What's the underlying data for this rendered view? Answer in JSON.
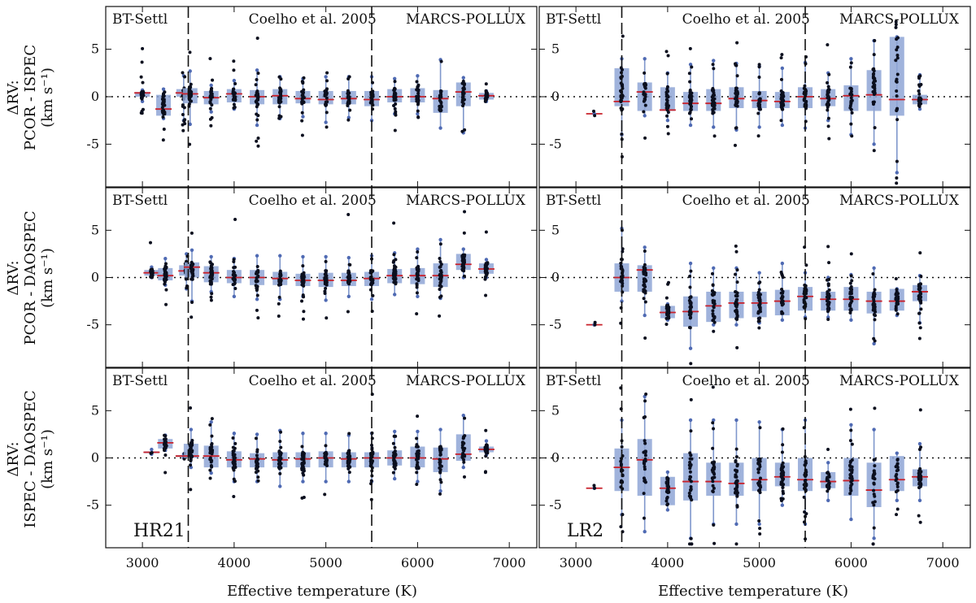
{
  "chart_data": {
    "type": "box-and-scatter",
    "figure_xlabel": "Effective temperature (K)",
    "row_ylabels": [
      [
        "ΔRV:",
        "PCOR - ISPEC",
        "(km s⁻¹)"
      ],
      [
        "ΔRV:",
        "PCOR - DAOSPEC",
        "(km s⁻¹)"
      ],
      [
        "ΔRV:",
        "ISPEC - DAOSPEC",
        "(km s⁻¹)"
      ]
    ],
    "columns": [
      "HR21",
      "LR2"
    ],
    "xlim": [
      2600,
      7300
    ],
    "xticks": [
      3000,
      4000,
      5000,
      6000,
      7000
    ],
    "ylim": [
      -9.5,
      9.5
    ],
    "yticks": [
      -5,
      0,
      5
    ],
    "model_boundaries": [
      3500,
      5500
    ],
    "model_labels": [
      "BT-Settl",
      "Coelho et al. 2005",
      "MARCS-POLLUX"
    ],
    "temperatures": [
      3100,
      3250,
      3500,
      3750,
      4000,
      4250,
      4500,
      4750,
      5000,
      5250,
      5500,
      5750,
      6000,
      6250,
      6500,
      6750
    ],
    "panels": [
      {
        "column": "HR21",
        "row": 0,
        "boxes": [
          [
            3000,
            -0.5,
            0,
            0.4,
            0.5,
            0.7
          ],
          [
            3230,
            -2.3,
            -2.0,
            -1.3,
            0.2,
            0.8
          ],
          [
            3450,
            -2.5,
            0.0,
            0.4,
            0.8,
            2.2
          ],
          [
            3520,
            -2.9,
            -0.7,
            0.3,
            0.9,
            2.7
          ],
          [
            3750,
            -1.6,
            -0.8,
            -0.1,
            0.6,
            1.2
          ],
          [
            4000,
            -1.3,
            -0.6,
            0.3,
            0.8,
            1.7
          ],
          [
            4250,
            -3.0,
            -0.8,
            0.0,
            0.7,
            2.8
          ],
          [
            4500,
            -2.3,
            -0.8,
            0.1,
            0.8,
            2.1
          ],
          [
            4750,
            -2.1,
            -0.7,
            -0.2,
            0.6,
            1.9
          ],
          [
            5000,
            -2.7,
            -0.8,
            -0.3,
            0.6,
            2.1
          ],
          [
            5250,
            -2.2,
            -0.8,
            -0.2,
            0.6,
            2.1
          ],
          [
            5500,
            -2.5,
            -1.0,
            -0.3,
            0.6,
            2.1
          ],
          [
            5750,
            -1.8,
            -0.6,
            0.0,
            0.8,
            1.9
          ],
          [
            6000,
            -1.8,
            -0.6,
            0.0,
            0.9,
            2.2
          ],
          [
            6250,
            -3.3,
            -1.7,
            -0.2,
            0.7,
            3.9
          ],
          [
            6500,
            -3.8,
            -1.0,
            0.5,
            1.5,
            2.0
          ],
          [
            6750,
            -0.5,
            -0.3,
            0.1,
            0.4,
            0.6
          ]
        ]
      },
      {
        "column": "LR2",
        "row": 0,
        "boxes": [
          [
            3200,
            -1.8,
            -1.8,
            -1.8,
            -1.8,
            -1.8
          ],
          [
            3500,
            -4.0,
            -1.0,
            -0.5,
            3.0,
            4.0
          ],
          [
            3750,
            -2.0,
            -1.5,
            0.5,
            1.5,
            4.0
          ],
          [
            4000,
            -2.5,
            -1.5,
            -1.4,
            1.0,
            2.5
          ],
          [
            4250,
            -3.0,
            -1.5,
            -0.7,
            0.5,
            3.4
          ],
          [
            4500,
            -3.2,
            -1.5,
            -0.7,
            0.8,
            3.8
          ],
          [
            4750,
            -3.5,
            -1.2,
            -0.2,
            1.0,
            3.5
          ],
          [
            5000,
            -3.2,
            -1.2,
            -0.4,
            0.6,
            3.2
          ],
          [
            5250,
            -3.0,
            -1.2,
            -0.5,
            0.5,
            3.0
          ],
          [
            5500,
            -3.3,
            -1.2,
            0.0,
            1.0,
            3.6
          ],
          [
            5750,
            -2.5,
            -1.0,
            -0.2,
            0.8,
            2.5
          ],
          [
            6000,
            -4.0,
            -1.5,
            0.1,
            1.2,
            4.0
          ],
          [
            6250,
            -5.0,
            -1.5,
            0.2,
            2.8,
            5.9
          ],
          [
            6500,
            -8.0,
            -2.0,
            -0.3,
            6.3,
            6.3
          ],
          [
            6750,
            -1.3,
            -0.8,
            -0.3,
            0.2,
            2.3
          ]
        ]
      },
      {
        "column": "HR21",
        "row": 1,
        "boxes": [
          [
            3100,
            0.0,
            0.2,
            0.5,
            0.8,
            1.1
          ],
          [
            3250,
            -0.8,
            -0.3,
            0.2,
            1.0,
            2.0
          ],
          [
            3480,
            -1.2,
            0.2,
            0.7,
            1.3,
            2.5
          ],
          [
            3540,
            -2.5,
            0.0,
            1.1,
            1.6,
            2.9
          ],
          [
            3750,
            -1.5,
            -0.5,
            0.5,
            1.2,
            2.2
          ],
          [
            4000,
            -2.0,
            -0.6,
            0.0,
            0.8,
            2.0
          ],
          [
            4250,
            -2.3,
            -0.8,
            0.0,
            0.8,
            2.3
          ],
          [
            4500,
            -2.3,
            -0.8,
            -0.1,
            0.6,
            2.3
          ],
          [
            4750,
            -2.0,
            -0.9,
            -0.3,
            0.4,
            2.2
          ],
          [
            5000,
            -2.4,
            -1.0,
            -0.3,
            0.5,
            2.2
          ],
          [
            5250,
            -2.0,
            -0.9,
            -0.3,
            0.5,
            2.1
          ],
          [
            5500,
            -2.3,
            -0.9,
            -0.1,
            0.6,
            2.3
          ],
          [
            5750,
            -1.8,
            -0.6,
            0.2,
            0.9,
            2.6
          ],
          [
            6000,
            -2.0,
            -0.7,
            0.2,
            1.0,
            3.0
          ],
          [
            6250,
            -2.2,
            -1.0,
            0.2,
            1.5,
            4.0
          ],
          [
            6500,
            0.0,
            0.8,
            1.4,
            2.5,
            3.0
          ],
          [
            6750,
            0.0,
            0.4,
            0.9,
            1.5,
            1.9
          ]
        ]
      },
      {
        "column": "LR2",
        "row": 1,
        "boxes": [
          [
            3200,
            -5.0,
            -5.0,
            -5.0,
            -5.0,
            -5.0
          ],
          [
            3500,
            -2.5,
            -1.5,
            0.0,
            1.5,
            5.2
          ],
          [
            3750,
            -4.0,
            -1.5,
            0.8,
            1.3,
            3.2
          ],
          [
            4000,
            -4.5,
            -4.3,
            -3.7,
            -3.0,
            -2.8
          ],
          [
            4250,
            -7.5,
            -5.2,
            -3.6,
            -2.0,
            1.5
          ],
          [
            4500,
            -5.0,
            -4.7,
            -3.0,
            -1.5,
            1.0
          ],
          [
            4750,
            -5.0,
            -4.3,
            -2.7,
            -1.5,
            1.0
          ],
          [
            5000,
            -4.8,
            -4.2,
            -2.7,
            -1.5,
            0.5
          ],
          [
            5250,
            -4.5,
            -4.0,
            -2.5,
            -1.3,
            1.5
          ],
          [
            5500,
            -4.2,
            -3.5,
            -2.0,
            -1.0,
            0.5
          ],
          [
            5750,
            -4.2,
            -3.5,
            -2.3,
            -1.5,
            0.0
          ],
          [
            6000,
            -4.5,
            -3.5,
            -2.3,
            -1.0,
            0.3
          ],
          [
            6250,
            -7.0,
            -3.8,
            -2.5,
            -1.5,
            1.0
          ],
          [
            6500,
            -4.0,
            -3.5,
            -2.5,
            -1.2,
            -1.2
          ],
          [
            6750,
            -4.8,
            -2.5,
            -1.5,
            -0.8,
            0.2
          ]
        ]
      },
      {
        "column": "HR21",
        "row": 2,
        "boxes": [
          [
            3100,
            0.4,
            0.5,
            0.6,
            0.7,
            0.9
          ],
          [
            3250,
            0.8,
            1.0,
            1.6,
            2.0,
            2.4
          ],
          [
            3450,
            0.0,
            0.1,
            0.2,
            0.3,
            0.4
          ],
          [
            3530,
            -1.0,
            0.0,
            0.2,
            1.5,
            3.0
          ],
          [
            3750,
            -1.6,
            -1.0,
            0.2,
            1.3,
            3.8
          ],
          [
            4000,
            -2.5,
            -1.0,
            -0.2,
            0.7,
            2.6
          ],
          [
            4250,
            -2.5,
            -1.0,
            -0.1,
            0.5,
            2.5
          ],
          [
            4500,
            -3.0,
            -1.0,
            -0.2,
            0.6,
            2.9
          ],
          [
            4750,
            -2.5,
            -1.0,
            -0.1,
            0.6,
            2.6
          ],
          [
            5000,
            -2.5,
            -1.0,
            0.0,
            0.7,
            2.6
          ],
          [
            5250,
            -2.5,
            -1.0,
            -0.1,
            0.6,
            2.4
          ],
          [
            5500,
            -2.5,
            -1.0,
            0.0,
            0.6,
            2.6
          ],
          [
            5750,
            -2.2,
            -0.8,
            0.0,
            0.8,
            2.8
          ],
          [
            6000,
            -2.5,
            -1.0,
            0.0,
            1.2,
            2.8
          ],
          [
            6250,
            -3.5,
            -1.5,
            -0.1,
            1.1,
            3.0
          ],
          [
            6500,
            -1.0,
            -0.3,
            0.4,
            2.5,
            4.5
          ],
          [
            6750,
            0.3,
            0.6,
            0.9,
            1.2,
            1.8
          ]
        ]
      },
      {
        "column": "LR2",
        "row": 2,
        "boxes": [
          [
            3200,
            -3.2,
            -3.2,
            -3.2,
            -3.2,
            -3.2
          ],
          [
            3500,
            -6.0,
            -3.5,
            -1.0,
            1.0,
            4.0
          ],
          [
            3750,
            -7.8,
            -4.0,
            -0.2,
            2.0,
            6.5
          ],
          [
            4000,
            -5.5,
            -5.0,
            -3.2,
            -2.0,
            -1.5
          ],
          [
            4250,
            -8.5,
            -4.5,
            -2.5,
            0.5,
            4.0
          ],
          [
            4500,
            -7.0,
            -4.0,
            -2.5,
            -0.5,
            4.0
          ],
          [
            4750,
            -7.0,
            -4.0,
            -2.7,
            -0.5,
            4.0
          ],
          [
            5000,
            -7.0,
            -3.5,
            -2.3,
            0.0,
            3.8
          ],
          [
            5250,
            -5.0,
            -3.0,
            -2.0,
            -0.5,
            3.0
          ],
          [
            5500,
            -7.0,
            -3.5,
            -2.3,
            0.0,
            4.0
          ],
          [
            5750,
            -4.5,
            -3.2,
            -2.5,
            -1.5,
            -0.5
          ],
          [
            6000,
            -6.5,
            -4.0,
            -2.4,
            0.0,
            3.5
          ],
          [
            6250,
            -8.5,
            -5.2,
            -3.4,
            -0.5,
            3.0
          ],
          [
            6500,
            -4.5,
            -3.5,
            -2.3,
            0.2,
            0.5
          ],
          [
            6750,
            -4.5,
            -3.0,
            -2.0,
            -1.2,
            1.5
          ]
        ]
      }
    ]
  }
}
